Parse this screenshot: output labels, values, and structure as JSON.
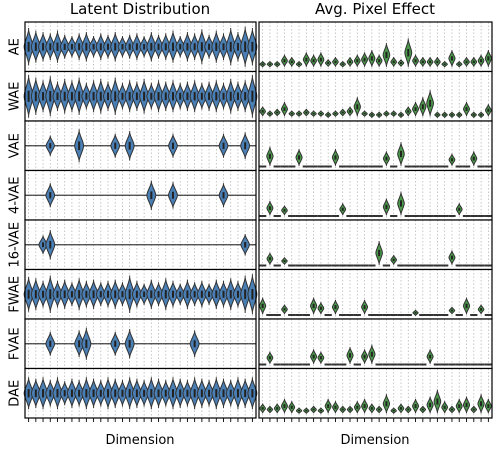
{
  "colors": {
    "left_violin": "#4a7fb5",
    "right_violin": "#4a9a4a",
    "outline": "#333333",
    "grid": "#b0b0b0"
  },
  "chart_data": [
    {
      "type": "violin",
      "title": "Latent Distribution",
      "xlabel": "Dimension",
      "ylabels": [
        "AE",
        "WAE",
        "VAE",
        "4-VAE",
        "16-VAE",
        "FWAE",
        "FVAE",
        "DAE"
      ],
      "n_dims": 32,
      "grid": true,
      "series": [
        {
          "name": "AE",
          "values": [
            0.7,
            0.6,
            0.55,
            0.5,
            0.6,
            0.45,
            0.4,
            0.5,
            0.55,
            0.4,
            0.5,
            0.45,
            0.55,
            0.4,
            0.45,
            0.5,
            0.4,
            0.55,
            0.45,
            0.5,
            0.6,
            0.4,
            0.55,
            0.5,
            0.65,
            0.45,
            0.6,
            0.5,
            0.7,
            0.55,
            0.75,
            0.7
          ]
        },
        {
          "name": "WAE",
          "values": [
            0.8,
            0.7,
            0.6,
            0.75,
            0.55,
            0.65,
            0.6,
            0.7,
            0.5,
            0.6,
            0.65,
            0.55,
            0.7,
            0.5,
            0.6,
            0.55,
            0.65,
            0.5,
            0.6,
            0.55,
            0.6,
            0.5,
            0.55,
            0.6,
            0.5,
            0.55,
            0.6,
            0.5,
            0.65,
            0.55,
            0.6,
            0.8
          ]
        },
        {
          "name": "VAE",
          "values": [
            0,
            0,
            0,
            0.38,
            0,
            0,
            0,
            0.62,
            0,
            0,
            0,
            0,
            0.45,
            0,
            0.55,
            0,
            0,
            0,
            0,
            0,
            0.45,
            0,
            0,
            0,
            0,
            0,
            0,
            0.45,
            0,
            0,
            0.5,
            0
          ]
        },
        {
          "name": "4-VAE",
          "values": [
            0,
            0,
            0,
            0.45,
            0,
            0,
            0,
            0,
            0,
            0,
            0,
            0,
            0,
            0,
            0,
            0,
            0,
            0.55,
            0,
            0,
            0.5,
            0,
            0,
            0,
            0,
            0,
            0,
            0.45,
            0,
            0,
            0,
            0
          ]
        },
        {
          "name": "16-VAE",
          "values": [
            0,
            0,
            0.35,
            0.55,
            0,
            0,
            0,
            0,
            0,
            0,
            0,
            0,
            0,
            0,
            0,
            0,
            0,
            0,
            0,
            0,
            0,
            0,
            0,
            0,
            0,
            0,
            0,
            0,
            0,
            0,
            0.4,
            0
          ]
        },
        {
          "name": "FWAE",
          "values": [
            0.65,
            0.6,
            0.5,
            0.7,
            0.5,
            0.55,
            0.45,
            0.6,
            0.5,
            0.55,
            0.45,
            0.5,
            0.55,
            0.45,
            0.7,
            0.5,
            0.4,
            0.55,
            0.45,
            0.6,
            0.5,
            0.4,
            0.55,
            0.45,
            0.5,
            0.4,
            0.55,
            0.5,
            0.6,
            0.5,
            0.7,
            0.75
          ]
        },
        {
          "name": "FVAE",
          "values": [
            0,
            0,
            0,
            0.45,
            0,
            0,
            0,
            0.5,
            0.6,
            0,
            0,
            0,
            0.45,
            0,
            0.55,
            0,
            0,
            0,
            0,
            0,
            0,
            0,
            0,
            0.5,
            0,
            0,
            0,
            0,
            0,
            0,
            0,
            0
          ]
        },
        {
          "name": "DAE",
          "values": [
            0.6,
            0.55,
            0.6,
            0.5,
            0.6,
            0.45,
            0.55,
            0.5,
            0.6,
            0.55,
            0.5,
            0.6,
            0.55,
            0.5,
            0.6,
            0.55,
            0.5,
            0.6,
            0.55,
            0.5,
            0.6,
            0.55,
            0.5,
            0.6,
            0.55,
            0.5,
            0.6,
            0.55,
            0.5,
            0.6,
            0.55,
            0.6
          ]
        }
      ]
    },
    {
      "type": "violin",
      "title": "Avg. Pixel Effect",
      "xlabel": "Dimension",
      "ylabels": [
        "AE",
        "WAE",
        "VAE",
        "4-VAE",
        "16-VAE",
        "FWAE",
        "FVAE",
        "DAE"
      ],
      "n_dims": 32,
      "grid": true,
      "series": [
        {
          "name": "AE",
          "values": [
            0.1,
            0.1,
            0.1,
            0.25,
            0.2,
            0.1,
            0.3,
            0.25,
            0.3,
            0.15,
            0.2,
            0.1,
            0.2,
            0.25,
            0.3,
            0.35,
            0.25,
            0.5,
            0.2,
            0.15,
            0.6,
            0.25,
            0.2,
            0.2,
            0.2,
            0.1,
            0.35,
            0.1,
            0.2,
            0.2,
            0.25,
            0.35
          ]
        },
        {
          "name": "WAE",
          "values": [
            0.2,
            0.1,
            0.15,
            0.3,
            0.1,
            0.1,
            0.15,
            0.1,
            0.1,
            0.05,
            0.1,
            0.15,
            0.2,
            0.4,
            0.1,
            0.05,
            0.05,
            0.1,
            0.1,
            0.05,
            0.2,
            0.3,
            0.4,
            0.55,
            0.05,
            0.05,
            0.05,
            0.05,
            0.3,
            0.05,
            0.05,
            0.25
          ]
        },
        {
          "name": "VAE",
          "values": [
            0,
            0.4,
            0,
            0,
            0,
            0.35,
            0,
            0,
            0,
            0,
            0.35,
            0,
            0,
            0,
            0,
            0,
            0,
            0.3,
            0,
            0.5,
            0,
            0,
            0,
            0,
            0,
            0,
            0.25,
            0,
            0,
            0.3,
            0,
            0
          ]
        },
        {
          "name": "4-VAE",
          "values": [
            0,
            0.3,
            0,
            0.2,
            0,
            0,
            0,
            0,
            0,
            0,
            0,
            0.25,
            0,
            0,
            0,
            0,
            0,
            0.35,
            0,
            0.5,
            0,
            0,
            0,
            0,
            0,
            0,
            0,
            0.25,
            0,
            0,
            0,
            0
          ]
        },
        {
          "name": "16-VAE",
          "values": [
            0,
            0.25,
            0,
            0.15,
            0,
            0,
            0,
            0,
            0,
            0,
            0,
            0,
            0,
            0,
            0,
            0,
            0.5,
            0,
            0.2,
            0,
            0,
            0,
            0,
            0,
            0,
            0,
            0.3,
            0,
            0,
            0,
            0,
            0
          ]
        },
        {
          "name": "FWAE",
          "values": [
            0.35,
            0,
            0,
            0.2,
            0,
            0,
            0,
            0.35,
            0.25,
            0,
            0.3,
            0,
            0,
            0,
            0.3,
            0,
            0,
            0,
            0,
            0,
            0,
            0.05,
            0,
            0,
            0,
            0,
            0.15,
            0,
            0.35,
            0,
            0.2,
            0
          ]
        },
        {
          "name": "FVAE",
          "values": [
            0,
            0.25,
            0,
            0,
            0,
            0,
            0,
            0.3,
            0.25,
            0,
            0,
            0,
            0.35,
            0,
            0.3,
            0.4,
            0,
            0,
            0,
            0,
            0,
            0,
            0,
            0.3,
            0,
            0,
            0,
            0,
            0,
            0,
            0,
            0
          ]
        },
        {
          "name": "DAE",
          "values": [
            0.2,
            0.15,
            0.2,
            0.3,
            0.25,
            0.1,
            0.1,
            0.15,
            0.1,
            0.3,
            0.25,
            0.15,
            0.15,
            0.25,
            0.3,
            0.2,
            0.15,
            0.4,
            0.1,
            0.2,
            0.15,
            0.3,
            0.15,
            0.35,
            0.5,
            0.25,
            0.15,
            0.3,
            0.35,
            0.15,
            0.4,
            0.3
          ]
        }
      ]
    }
  ]
}
